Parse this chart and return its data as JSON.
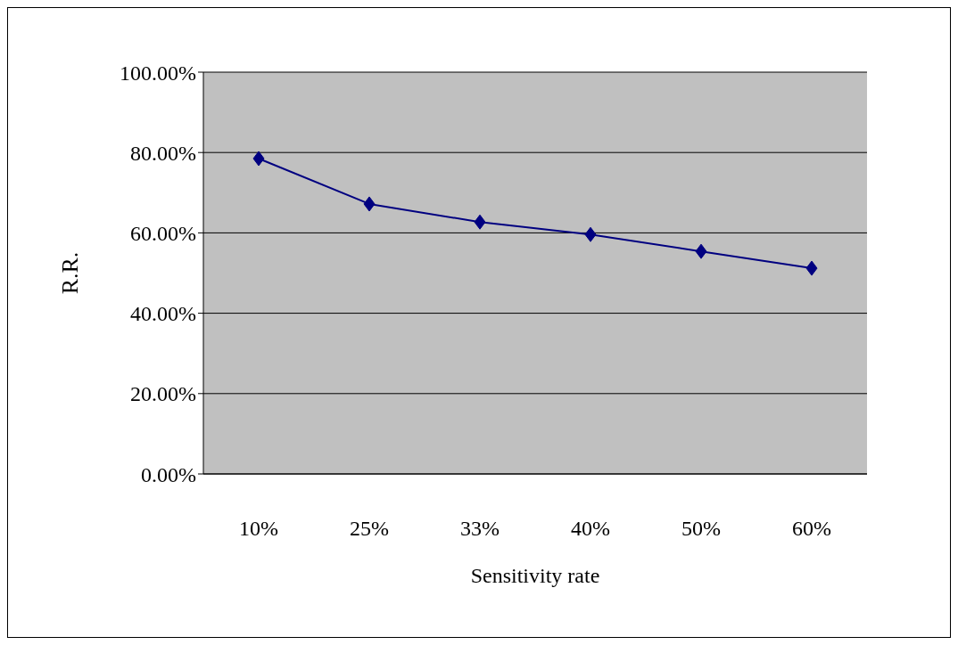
{
  "chart_data": {
    "type": "line",
    "xlabel": "Sensitivity rate",
    "ylabel": "R.R.",
    "categories": [
      "10%",
      "25%",
      "33%",
      "40%",
      "50%",
      "60%"
    ],
    "series": [
      {
        "color": "#000080",
        "values": [
          78.5,
          67.2,
          62.7,
          59.6,
          55.4,
          51.2
        ]
      }
    ],
    "ylim": [
      0,
      100
    ],
    "yticks": [
      {
        "value": 0,
        "label": "0.00%"
      },
      {
        "value": 20,
        "label": "20.00%"
      },
      {
        "value": 40,
        "label": "40.00%"
      },
      {
        "value": 60,
        "label": "60.00%"
      },
      {
        "value": 80,
        "label": "80.00%"
      },
      {
        "value": 100,
        "label": "100.00%"
      }
    ],
    "grid": "y",
    "marker": "diamond",
    "line_style": "solid"
  }
}
